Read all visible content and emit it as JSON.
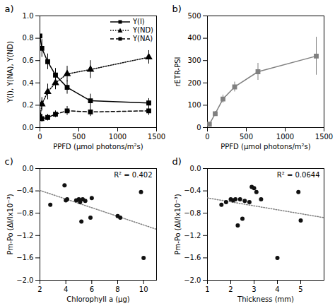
{
  "chart_data": [
    {
      "type": "line",
      "title": "a)",
      "xlabel": "PPFD (μmol photons/m²s)",
      "ylabel": "Y(I), Y(NA), Y(ND)",
      "x": [
        0,
        25,
        100,
        200,
        350,
        650,
        1400
      ],
      "series": [
        {
          "name": "Y(I)",
          "color": "black",
          "marker": "square",
          "line_style": "solid",
          "values": [
            0.82,
            0.71,
            0.59,
            0.47,
            0.36,
            0.24,
            0.22
          ],
          "errors": [
            0.08,
            0.08,
            0.07,
            0.06,
            0.06,
            0.06,
            0.04
          ]
        },
        {
          "name": "Y(ND)",
          "color": "black",
          "marker": "triangle",
          "line_style": "dotted",
          "values": [
            0.08,
            0.21,
            0.32,
            0.4,
            0.48,
            0.52,
            0.63
          ],
          "errors": [
            0.05,
            0.06,
            0.07,
            0.06,
            0.07,
            0.08,
            0.06
          ]
        },
        {
          "name": "Y(NA)",
          "color": "black",
          "marker": "square",
          "line_style": "dashed",
          "values": [
            0.1,
            0.08,
            0.09,
            0.12,
            0.15,
            0.14,
            0.15
          ],
          "errors": [
            0.04,
            0.03,
            0.03,
            0.03,
            0.04,
            0.04,
            0.04
          ]
        }
      ],
      "xlim": [
        0,
        1500
      ],
      "xticks": [
        0,
        500,
        1000,
        1500
      ],
      "ylim": [
        0,
        1.0
      ],
      "yticks": [
        {
          "value": 0,
          "label": "0.0"
        },
        0.2,
        0.4,
        0.6,
        0.8,
        {
          "value": 1.0,
          "label": "1.0"
        }
      ],
      "legend": "upper right"
    },
    {
      "type": "line",
      "title": "b)",
      "xlabel": "PPFD (μmol photons/m²s)",
      "ylabel": "rETR-PSI",
      "x": [
        25,
        100,
        200,
        350,
        650,
        1400
      ],
      "values": [
        15,
        62,
        128,
        182,
        250,
        320
      ],
      "errors": [
        3,
        10,
        18,
        22,
        38,
        85
      ],
      "color": "#808080",
      "marker": "square",
      "line_style": "solid",
      "xlim": [
        0,
        1500
      ],
      "xticks": [
        0,
        500,
        1000,
        1500
      ],
      "ylim": [
        0,
        500
      ],
      "yticks": [
        0,
        100,
        200,
        300,
        400,
        500
      ]
    },
    {
      "type": "scatter",
      "title": "c)",
      "xlabel": "Chlorophyll a (μg)",
      "ylabel": "Pm-Po (ΔI/Ix10⁻³)",
      "x": [
        2.8,
        3.9,
        4.0,
        4.1,
        4.8,
        5.0,
        5.1,
        5.2,
        5.3,
        5.5,
        5.9,
        6.0,
        8.0,
        8.2,
        9.8,
        10.0
      ],
      "values": [
        -0.65,
        -0.3,
        -0.57,
        -0.55,
        -0.57,
        -0.55,
        -0.6,
        -0.95,
        -0.55,
        -0.58,
        -0.88,
        -0.53,
        -0.85,
        -0.88,
        -0.42,
        -1.6
      ],
      "color": "#111111",
      "fit": {
        "x": [
          2,
          11
        ],
        "values": [
          -0.3914,
          -1.088
        ],
        "color": "gray",
        "line_style": "dotted"
      },
      "annotations": [
        "R² = 0.402"
      ],
      "xlim": [
        2,
        11
      ],
      "xticks": [
        2,
        4,
        6,
        8,
        10
      ],
      "ylim": [
        -2.0,
        0
      ],
      "yticks": [
        {
          "value": -2.0,
          "label": "−2.0"
        },
        -1.6,
        -1.2,
        -0.8,
        -0.4,
        {
          "value": 0,
          "label": "0.0"
        }
      ]
    },
    {
      "type": "scatter",
      "title": "d)",
      "xlabel": "Thickness (mm)",
      "ylabel": "Pm-Po (ΔI/Ix10⁻³)",
      "x": [
        1.6,
        1.8,
        2.0,
        2.1,
        2.2,
        2.3,
        2.4,
        2.5,
        2.6,
        2.8,
        2.9,
        3.0,
        3.1,
        3.3,
        4.0,
        5.0,
        4.9
      ],
      "values": [
        -0.65,
        -0.6,
        -0.55,
        -0.57,
        -0.55,
        -1.02,
        -0.55,
        -0.9,
        -0.58,
        -0.6,
        -0.33,
        -0.35,
        -0.42,
        -0.55,
        -1.6,
        -0.93,
        -0.42
      ],
      "color": "#111111",
      "fit": {
        "x": [
          1,
          6
        ],
        "values": [
          -0.5261,
          -0.8795
        ],
        "color": "gray",
        "line_style": "dotted"
      },
      "annotations": [
        "R² = 0.0644"
      ],
      "xlim": [
        1,
        6
      ],
      "xticks": [
        1,
        2,
        3,
        4,
        5
      ],
      "ylim": [
        -2.0,
        0
      ],
      "yticks": [
        {
          "value": -2.0,
          "label": "−2.0"
        },
        -1.6,
        -1.2,
        -0.8,
        -0.4,
        {
          "value": 0,
          "label": "0.0"
        }
      ]
    }
  ]
}
